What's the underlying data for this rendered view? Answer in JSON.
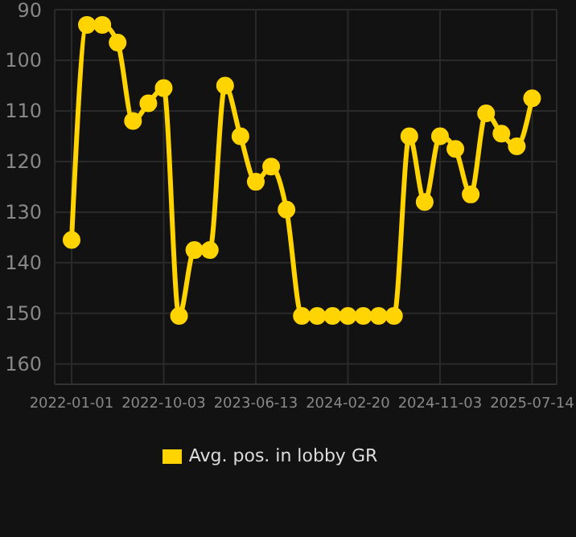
{
  "chart_data": {
    "type": "line",
    "categories": [
      "2022-01-01",
      null,
      null,
      null,
      null,
      null,
      "2022-10-03",
      null,
      null,
      null,
      null,
      null,
      "2023-06-13",
      null,
      null,
      null,
      null,
      null,
      "2024-02-20",
      null,
      null,
      null,
      null,
      null,
      "2024-11-03",
      null,
      null,
      null,
      null,
      null,
      "2025-07-14"
    ],
    "series": [
      {
        "name": "Avg. pos. in lobby GR",
        "color": "#ffd400",
        "values": [
          135.5,
          93,
          93,
          96.5,
          112,
          108.5,
          105.5,
          150.5,
          137.5,
          137.5,
          105,
          115,
          124,
          121,
          129.5,
          150.5,
          150.5,
          150.5,
          150.5,
          150.5,
          150.5,
          150.5,
          115,
          128,
          115,
          117.5,
          126.5,
          110.5,
          114.5,
          117,
          107.5
        ]
      }
    ],
    "ylim": [
      164,
      90
    ],
    "yticks": [
      90,
      100,
      110,
      120,
      130,
      140,
      150,
      160
    ],
    "grid": true,
    "legend": "bottom",
    "marker": "circle",
    "line_style": "solid"
  }
}
